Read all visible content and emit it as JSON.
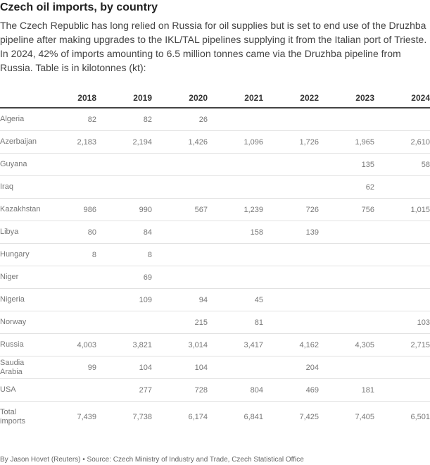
{
  "header": {
    "title": "Czech oil imports, by country",
    "subtitle": "The Czech Republic has long relied on Russia for oil supplies but is set to end use of the Druzhba pipeline after making upgrades to the IKL/TAL pipelines supplying it from the Italian port of Trieste. In 2024, 42% of imports amounting to 6.5 million tonnes came via the Druzhba pipeline from Russia. Table is in kilotonnes (kt):"
  },
  "table": {
    "columns": [
      "2018",
      "2019",
      "2020",
      "2021",
      "2022",
      "2023",
      "2024"
    ],
    "rows": [
      [
        "Algeria",
        "82",
        "82",
        "26",
        null,
        null,
        null,
        null
      ],
      [
        "Azerbaijan",
        "2,183",
        "2,194",
        "1,426",
        "1,096",
        "1,726",
        "1,965",
        "2,610"
      ],
      [
        "Guyana",
        null,
        null,
        null,
        null,
        null,
        "135",
        "58"
      ],
      [
        "Iraq",
        null,
        null,
        null,
        null,
        null,
        "62",
        null
      ],
      [
        "Kazakhstan",
        "986",
        "990",
        "567",
        "1,239",
        "726",
        "756",
        "1,015"
      ],
      [
        "Libya",
        "80",
        "84",
        null,
        "158",
        "139",
        null,
        null
      ],
      [
        "Hungary",
        "8",
        "8",
        null,
        null,
        null,
        null,
        null
      ],
      [
        "Niger",
        null,
        "69",
        null,
        null,
        null,
        null,
        null
      ],
      [
        "Nigeria",
        null,
        "109",
        "94",
        "45",
        null,
        null,
        null
      ],
      [
        "Norway",
        null,
        null,
        "215",
        "81",
        null,
        null,
        "103"
      ],
      [
        "Russia",
        "4,003",
        "3,821",
        "3,014",
        "3,417",
        "4,162",
        "4,305",
        "2,715"
      ],
      [
        "Saudia Arabia",
        "99",
        "104",
        "104",
        null,
        "204",
        null,
        null
      ],
      [
        "USA",
        null,
        "277",
        "728",
        "804",
        "469",
        "181",
        null
      ]
    ],
    "total": [
      "Total imports",
      "7,439",
      "7,738",
      "6,174",
      "6,841",
      "7,425",
      "7,405",
      "6,501"
    ]
  },
  "footer": "By Jason Hovet (Reuters) • Source: Czech Ministry of Industry and Trade, Czech Statistical Office"
}
